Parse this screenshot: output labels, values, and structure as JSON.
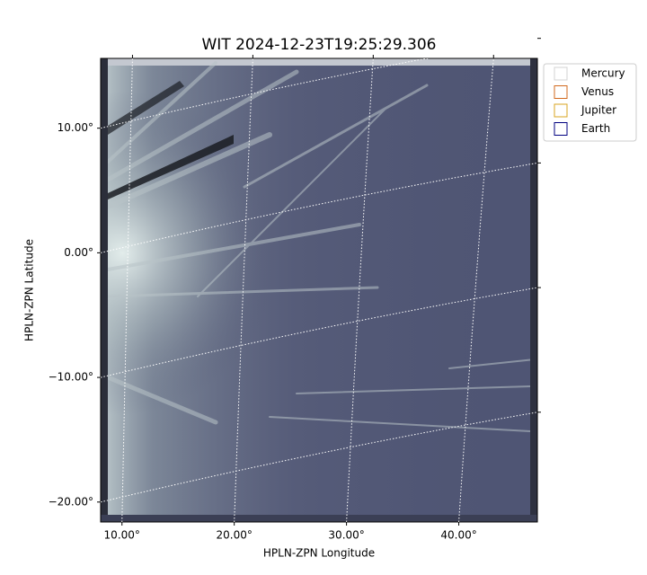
{
  "chart_data": {
    "type": "image",
    "title": "WIT 2024-12-23T19:25:29.306",
    "xlabel": "HPLN-ZPN Longitude",
    "ylabel": "HPLN-ZPN Latitude",
    "xlim": [
      8.1,
      47.0
    ],
    "ylim": [
      -21.6,
      15.6
    ],
    "xticks": [
      {
        "value": 10,
        "label": "10.00°"
      },
      {
        "value": 20,
        "label": "20.00°"
      },
      {
        "value": 30,
        "label": "30.00°"
      },
      {
        "value": 40,
        "label": "40.00°"
      }
    ],
    "yticks": [
      {
        "value": 10,
        "label": "10.00°"
      },
      {
        "value": 0,
        "label": "0.00°"
      },
      {
        "value": -10,
        "label": "−10.00°"
      },
      {
        "value": -20,
        "label": "−20.00°"
      }
    ],
    "grid": true,
    "legend": {
      "location": "outside upper right",
      "entries": [
        {
          "name": "Mercury",
          "color": "#d3d3d3"
        },
        {
          "name": "Venus",
          "color": "#d2691e"
        },
        {
          "name": "Jupiter",
          "color": "#daa520"
        },
        {
          "name": "Earth",
          "color": "#000080"
        }
      ]
    }
  }
}
